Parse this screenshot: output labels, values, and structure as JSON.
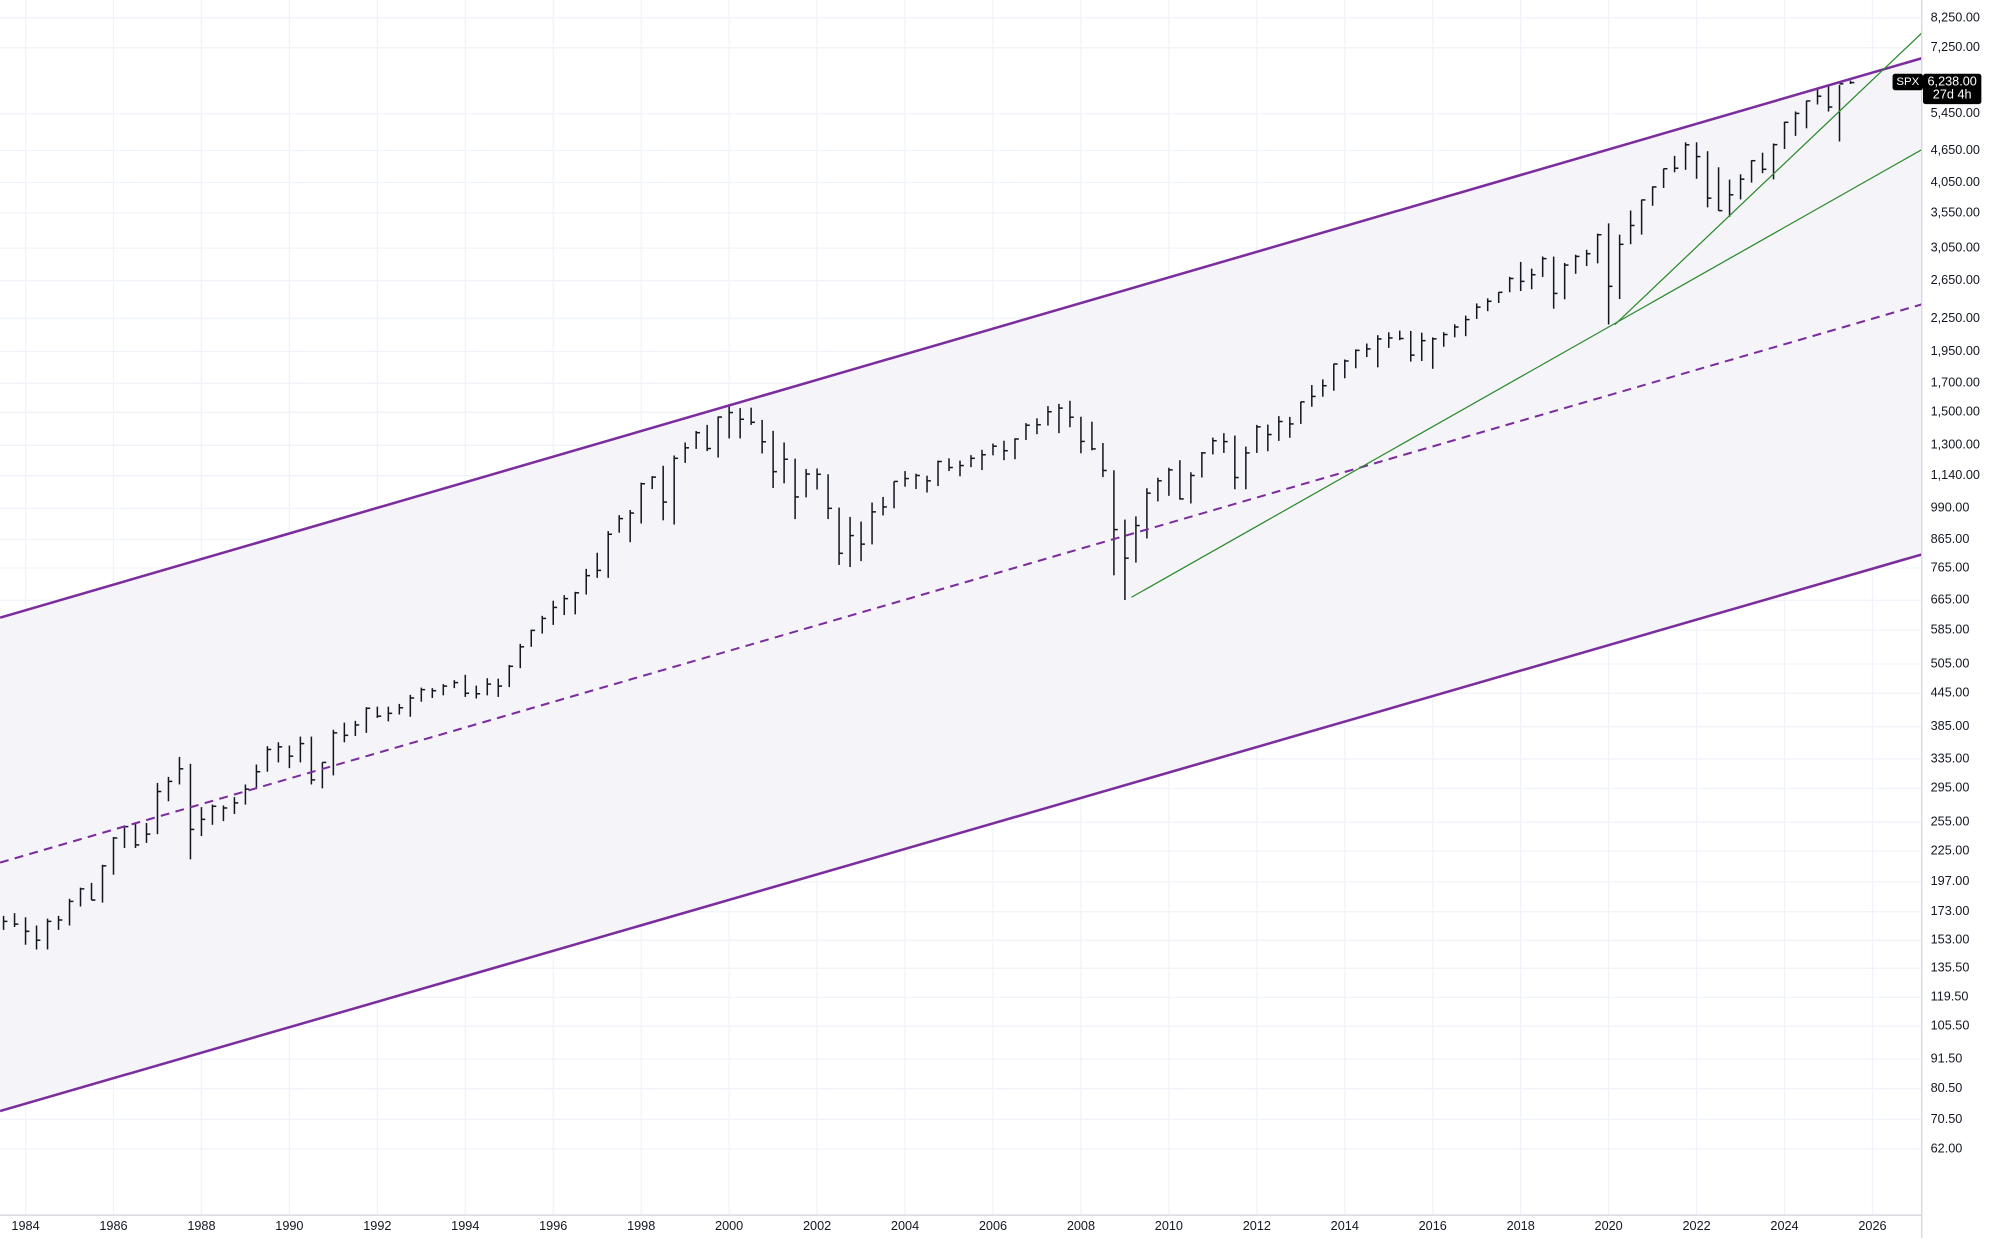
{
  "chart_data": {
    "type": "ohlc",
    "log_y": true,
    "grid": true,
    "color": "#131722",
    "channel_fill": "#f5f5f9",
    "xlim": [
      1983.42,
      2027.12
    ],
    "ylim": [
      46.6,
      8915
    ],
    "xticks": [
      1984,
      1986,
      1988,
      1990,
      1992,
      1994,
      1996,
      1998,
      2000,
      2002,
      2004,
      2006,
      2008,
      2010,
      2012,
      2014,
      2016,
      2018,
      2020,
      2022,
      2024,
      2026
    ],
    "yticks": [
      {
        "value": 8250,
        "label": "8,250.00"
      },
      {
        "value": 7250,
        "label": "7,250.00"
      },
      {
        "value": 5450,
        "label": "5,450.00"
      },
      {
        "value": 4650,
        "label": "4,650.00"
      },
      {
        "value": 4050,
        "label": "4,050.00"
      },
      {
        "value": 3550,
        "label": "3,550.00"
      },
      {
        "value": 3050,
        "label": "3,050.00"
      },
      {
        "value": 2650,
        "label": "2,650.00"
      },
      {
        "value": 2250,
        "label": "2,250.00"
      },
      {
        "value": 1950,
        "label": "1,950.00"
      },
      {
        "value": 1700,
        "label": "1,700.00"
      },
      {
        "value": 1500,
        "label": "1,500.00"
      },
      {
        "value": 1300,
        "label": "1,300.00"
      },
      {
        "value": 1140,
        "label": "1,140.00"
      },
      {
        "value": 990,
        "label": "990.00"
      },
      {
        "value": 865,
        "label": "865.00"
      },
      {
        "value": 765,
        "label": "765.00"
      },
      {
        "value": 665,
        "label": "665.00"
      },
      {
        "value": 585,
        "label": "585.00"
      },
      {
        "value": 505,
        "label": "505.00"
      },
      {
        "value": 445,
        "label": "445.00"
      },
      {
        "value": 385,
        "label": "385.00"
      },
      {
        "value": 335,
        "label": "335.00"
      },
      {
        "value": 295,
        "label": "295.00"
      },
      {
        "value": 255,
        "label": "255.00"
      },
      {
        "value": 225,
        "label": "225.00"
      },
      {
        "value": 197,
        "label": "197.00"
      },
      {
        "value": 173,
        "label": "173.00"
      },
      {
        "value": 153,
        "label": "153.00"
      },
      {
        "value": 135.5,
        "label": "135.50"
      },
      {
        "value": 119.5,
        "label": "119.50"
      },
      {
        "value": 105.5,
        "label": "105.50"
      },
      {
        "value": 91.5,
        "label": "91.50"
      },
      {
        "value": 80.5,
        "label": "80.50"
      },
      {
        "value": 70.5,
        "label": "70.50"
      },
      {
        "value": 62,
        "label": "62.00"
      }
    ],
    "x": [
      1983.5,
      1983.75,
      1984,
      1984.25,
      1984.5,
      1984.75,
      1985,
      1985.25,
      1985.5,
      1985.75,
      1986,
      1986.25,
      1986.5,
      1986.75,
      1987,
      1987.25,
      1987.5,
      1987.75,
      1988,
      1988.25,
      1988.5,
      1988.75,
      1989,
      1989.25,
      1989.5,
      1989.75,
      1990,
      1990.25,
      1990.5,
      1990.75,
      1991,
      1991.25,
      1991.5,
      1991.75,
      1992,
      1992.25,
      1992.5,
      1992.75,
      1993,
      1993.25,
      1993.5,
      1993.75,
      1994,
      1994.25,
      1994.5,
      1994.75,
      1995,
      1995.25,
      1995.5,
      1995.75,
      1996,
      1996.25,
      1996.5,
      1996.75,
      1997,
      1997.25,
      1997.5,
      1997.75,
      1998,
      1998.25,
      1998.5,
      1998.75,
      1999,
      1999.25,
      1999.5,
      1999.75,
      2000,
      2000.25,
      2000.5,
      2000.75,
      2001,
      2001.25,
      2001.5,
      2001.75,
      2002,
      2002.25,
      2002.5,
      2002.75,
      2003,
      2003.25,
      2003.5,
      2003.75,
      2004,
      2004.25,
      2004.5,
      2004.75,
      2005,
      2005.25,
      2005.5,
      2005.75,
      2006,
      2006.25,
      2006.5,
      2006.75,
      2007,
      2007.25,
      2007.5,
      2007.75,
      2008,
      2008.25,
      2008.5,
      2008.75,
      2009,
      2009.25,
      2009.5,
      2009.75,
      2010,
      2010.25,
      2010.5,
      2010.75,
      2011,
      2011.25,
      2011.5,
      2011.75,
      2012,
      2012.25,
      2012.5,
      2012.75,
      2013,
      2013.25,
      2013.5,
      2013.75,
      2014,
      2014.25,
      2014.5,
      2014.75,
      2015,
      2015.25,
      2015.5,
      2015.75,
      2016,
      2016.25,
      2016.5,
      2016.75,
      2017,
      2017.25,
      2017.5,
      2017.75,
      2018,
      2018.25,
      2018.5,
      2018.75,
      2019,
      2019.25,
      2019.5,
      2019.75,
      2020,
      2020.25,
      2020.5,
      2020.75,
      2021,
      2021.25,
      2021.5,
      2021.75,
      2022,
      2022.25,
      2022.5,
      2022.75,
      2023,
      2023.25,
      2023.5,
      2023.75,
      2024,
      2024.25,
      2024.5,
      2024.75,
      2025,
      2025.25,
      2025.5
    ],
    "high": [
      170,
      172,
      169,
      163,
      168,
      170,
      183,
      192,
      196,
      212,
      239,
      250,
      254,
      254,
      302,
      310,
      338,
      328,
      272,
      275,
      274,
      284,
      300,
      327,
      354,
      360,
      355,
      369,
      369,
      330,
      380,
      392,
      395,
      419,
      420,
      420,
      425,
      442,
      456,
      455,
      463,
      471,
      482,
      460,
      475,
      474,
      503,
      551,
      586,
      622,
      664,
      680,
      690,
      762,
      817,
      897,
      961,
      983,
      1106,
      1138,
      1190,
      1244,
      1316,
      1383,
      1420,
      1473,
      1553,
      1527,
      1530,
      1451,
      1384,
      1316,
      1227,
      1173,
      1176,
      1147,
      993,
      954,
      935,
      1015,
      1040,
      1112,
      1163,
      1150,
      1140,
      1217,
      1229,
      1217,
      1246,
      1275,
      1310,
      1326,
      1340,
      1431,
      1461,
      1540,
      1555,
      1576,
      1471,
      1440,
      1313,
      1167,
      943,
      956,
      1080,
      1130,
      1180,
      1219,
      1157,
      1263,
      1344,
      1370,
      1356,
      1293,
      1420,
      1422,
      1475,
      1470,
      1570,
      1687,
      1729,
      1849,
      1884,
      1968,
      2019,
      2093,
      2119,
      2135,
      2132,
      2116,
      2073,
      2120,
      2194,
      2278,
      2401,
      2454,
      2520,
      2694,
      2873,
      2791,
      2941,
      2940,
      2860,
      2964,
      3028,
      3247,
      3394,
      3233,
      3588,
      3760,
      3983,
      4300,
      4545,
      4818,
      4818,
      4637,
      4325,
      4101,
      4196,
      4458,
      4607,
      4794,
      5265,
      5505,
      5768,
      6100,
      6147,
      6173,
      6290
    ],
    "low": [
      160,
      162,
      150,
      147,
      147,
      160,
      163,
      177,
      182,
      180,
      203,
      228,
      228,
      233,
      242,
      279,
      300,
      217,
      240,
      252,
      256,
      264,
      275,
      294,
      317,
      330,
      322,
      330,
      300,
      295,
      312,
      360,
      370,
      375,
      400,
      394,
      406,
      402,
      429,
      436,
      441,
      455,
      438,
      435,
      441,
      438,
      457,
      496,
      544,
      576,
      598,
      624,
      626,
      682,
      733,
      733,
      891,
      855,
      927,
      1076,
      940,
      923,
      1205,
      1280,
      1268,
      1233,
      1339,
      1339,
      1420,
      1255,
      1081,
      1103,
      945,
      1038,
      1074,
      945,
      775,
      768,
      788,
      847,
      960,
      990,
      1087,
      1076,
      1060,
      1090,
      1163,
      1137,
      1183,
      1168,
      1245,
      1219,
      1224,
      1330,
      1364,
      1416,
      1370,
      1406,
      1256,
      1272,
      1133,
      741,
      666,
      783,
      869,
      1020,
      1045,
      1028,
      1011,
      1131,
      1250,
      1258,
      1075,
      1075,
      1258,
      1267,
      1325,
      1343,
      1426,
      1536,
      1604,
      1646,
      1737,
      1814,
      1904,
      1821,
      1981,
      2048,
      1867,
      1872,
      1810,
      1991,
      2074,
      2084,
      2245,
      2322,
      2405,
      2520,
      2533,
      2553,
      2692,
      2347,
      2444,
      2729,
      2822,
      2855,
      2192,
      2447,
      3101,
      3233,
      3662,
      3955,
      4233,
      4278,
      4115,
      3637,
      3584,
      3492,
      3764,
      4048,
      4216,
      4104,
      4682,
      4954,
      5119,
      5674,
      5504,
      4835,
      6200
    ],
    "close": [
      166,
      164,
      159,
      153,
      166,
      167,
      181,
      191,
      182,
      211,
      238,
      250,
      231,
      242,
      291,
      304,
      321,
      247,
      258,
      273,
      271,
      277,
      294,
      317,
      349,
      353,
      339,
      358,
      306,
      330,
      375,
      371,
      388,
      417,
      403,
      408,
      418,
      436,
      452,
      450,
      459,
      466,
      445,
      444,
      463,
      459,
      500,
      544,
      584,
      615,
      645,
      670,
      687,
      740,
      757,
      885,
      947,
      970,
      1101,
      1133,
      1017,
      1229,
      1286,
      1373,
      1282,
      1469,
      1498,
      1455,
      1436,
      1320,
      1160,
      1224,
      1040,
      1148,
      1147,
      990,
      815,
      880,
      848,
      975,
      996,
      1112,
      1126,
      1141,
      1115,
      1212,
      1181,
      1191,
      1229,
      1248,
      1295,
      1270,
      1336,
      1418,
      1421,
      1503,
      1527,
      1468,
      1322,
      1280,
      1166,
      903,
      798,
      919,
      1057,
      1115,
      1169,
      1031,
      1141,
      1258,
      1326,
      1321,
      1131,
      1258,
      1408,
      1362,
      1441,
      1426,
      1569,
      1606,
      1682,
      1848,
      1872,
      1960,
      1972,
      2059,
      2068,
      2063,
      1920,
      2044,
      2060,
      2099,
      2168,
      2239,
      2363,
      2423,
      2519,
      2674,
      2641,
      2718,
      2914,
      2507,
      2834,
      2942,
      2977,
      3231,
      2585,
      3100,
      3363,
      3756,
      3973,
      4298,
      4308,
      4766,
      4530,
      3785,
      3586,
      3840,
      4109,
      4450,
      4288,
      4770,
      5254,
      5460,
      5762,
      5882,
      5612,
      6205,
      6238
    ],
    "lines": [
      {
        "x": [
          1983.42,
          2027.12
        ],
        "y": [
          617,
          6930
        ],
        "color": "#7b2d9e",
        "dashed": false,
        "width": 2
      },
      {
        "x": [
          1983.42,
          2027.12
        ],
        "y": [
          73.1,
          811
        ],
        "color": "#7b2d9e",
        "dashed": false,
        "width": 2
      },
      {
        "x": [
          1983.42,
          2027.12
        ],
        "y": [
          214,
          2391
        ],
        "color": "#7b2d9e",
        "dashed": true,
        "width": 1.6
      },
      {
        "x": [
          2009.15,
          2027.12
        ],
        "y": [
          674,
          4668
        ],
        "color": "#2e8b2e",
        "dashed": false,
        "width": 1
      },
      {
        "x": [
          2020.14,
          2027.12
        ],
        "y": [
          2190,
          7727
        ],
        "color": "#2e8b2e",
        "dashed": false,
        "width": 1
      }
    ],
    "last_price": {
      "symbol": "SPX",
      "value": 6238,
      "label": "6,238.00",
      "countdown": "27d 4h"
    }
  }
}
